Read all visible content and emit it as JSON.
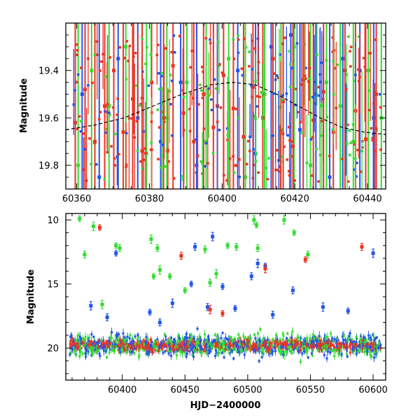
{
  "chart_data": [
    {
      "type": "scatter",
      "title": "",
      "xlabel": "",
      "ylabel": "Magnitude",
      "xlim": [
        60357,
        60445
      ],
      "ylim": [
        19.9,
        19.2
      ],
      "y_inverted": true,
      "xticks": [
        60360,
        60380,
        60400,
        60420,
        60440
      ],
      "yticks": [
        19.4,
        19.6,
        19.8
      ],
      "grid": false,
      "legend": "none",
      "series": [
        {
          "color": "#2255ee",
          "error_bars": true,
          "x": [
            60361.5,
            60366.2,
            60371.4,
            60376.8,
            60383.1,
            60388.6,
            60393.0,
            60398.7,
            60404.3,
            60409.2,
            60413.5,
            60418.9,
            60421.4,
            60425.8,
            60429.6,
            60433.2,
            60437.9,
            60441.7
          ],
          "y": [
            19.5,
            19.85,
            19.35,
            19.6,
            19.7,
            19.45,
            19.8,
            19.55,
            19.4,
            19.75,
            19.3,
            19.25,
            19.65,
            19.5,
            19.85,
            19.35,
            19.4,
            19.6
          ]
        },
        {
          "color": "#33dd33",
          "error_bars": true,
          "x": [
            60360.4,
            60364.1,
            60368.9,
            60373.5,
            60379.2,
            60384.8,
            60390.3,
            60395.6,
            60401.8,
            60406.4,
            60411.7,
            60416.2,
            60419.8,
            60424.3,
            60428.7,
            60432.5,
            60436.1,
            60440.2,
            60443.8
          ],
          "y": [
            19.8,
            19.4,
            19.55,
            19.3,
            19.75,
            19.6,
            19.45,
            19.7,
            19.35,
            19.85,
            19.5,
            19.65,
            19.3,
            19.8,
            19.45,
            19.55,
            19.7,
            19.4,
            19.6
          ]
        },
        {
          "color": "#ee3322",
          "error_bars": true,
          "x": [
            60359.6,
            60362.3,
            60365.0,
            60367.7,
            60370.2,
            60372.8,
            60375.4,
            60378.0,
            60380.6,
            60383.9,
            60386.5,
            60389.4,
            60392.2,
            60394.9,
            60397.6,
            60400.4,
            60403.1,
            60405.9,
            60408.5,
            60411.2,
            60414.0,
            60416.8,
            60419.5,
            60422.3,
            60425.1,
            60427.9,
            60430.6,
            60433.8,
            60436.7,
            60439.5,
            60442.4
          ],
          "y": [
            19.62,
            19.48,
            19.7,
            19.55,
            19.4,
            19.66,
            19.52,
            19.74,
            19.45,
            19.6,
            19.38,
            19.58,
            19.7,
            19.5,
            19.64,
            19.42,
            19.56,
            19.68,
            19.47,
            19.6,
            19.35,
            19.53,
            19.72,
            19.44,
            19.61,
            19.49,
            19.66,
            19.4,
            19.57,
            19.69,
            19.5
          ]
        }
      ],
      "model_curve": {
        "color": "#000000",
        "style": "dashed",
        "x": [
          60357,
          60365,
          60373,
          60381,
          60389,
          60397,
          60403,
          60409,
          60415,
          60421,
          60427,
          60433,
          60439,
          60445
        ],
        "y": [
          19.65,
          19.63,
          19.6,
          19.55,
          19.5,
          19.46,
          19.45,
          19.46,
          19.5,
          19.55,
          19.6,
          19.64,
          19.66,
          19.67
        ]
      }
    },
    {
      "type": "scatter",
      "title": "",
      "xlabel": "HJD−2400000",
      "ylabel": "Magnitude",
      "xlim": [
        60355,
        60610
      ],
      "ylim": [
        22.5,
        9.5
      ],
      "y_inverted": true,
      "xticks": [
        60400,
        60450,
        60500,
        60550,
        60600
      ],
      "yticks": [
        10,
        15,
        20
      ],
      "grid": false,
      "legend": "none",
      "series": [
        {
          "color": "#2255ee",
          "error_bars": true,
          "x": [
            60395,
            60458,
            60472,
            60480,
            60503,
            60508,
            60514,
            60536,
            60600,
            60455,
            60468,
            60440,
            60422,
            60388,
            60375,
            60490,
            60520,
            60560,
            60580,
            60430
          ],
          "y": [
            12.6,
            12.1,
            11.3,
            15.2,
            14.4,
            13.4,
            13.6,
            15.5,
            12.6,
            15.0,
            16.8,
            16.5,
            17.2,
            17.6,
            16.7,
            16.9,
            17.4,
            16.8,
            17.1,
            18.0
          ]
        },
        {
          "color": "#33dd33",
          "error_bars": true,
          "x": [
            60366,
            60370,
            60377,
            60395,
            60398,
            60423,
            60425,
            60428,
            60430,
            60438,
            60466,
            60475,
            60484,
            60491,
            60505,
            60507,
            60508,
            60529,
            60537,
            60548,
            60384,
            60450,
            60470
          ],
          "y": [
            9.9,
            12.7,
            10.5,
            12.0,
            12.2,
            11.5,
            14.4,
            12.2,
            13.9,
            14.4,
            12.3,
            14.2,
            12.0,
            12.1,
            10.0,
            10.4,
            12.2,
            10.0,
            11.0,
            12.7,
            16.6,
            15.5,
            14.9
          ]
        },
        {
          "color": "#ee3322",
          "error_bars": true,
          "x": [
            60382,
            60447,
            60514,
            60546,
            60591,
            60470,
            60480
          ],
          "y": [
            10.6,
            12.8,
            13.8,
            13.1,
            12.1,
            17.0,
            17.3
          ]
        }
      ],
      "dense_band": {
        "x_range": [
          60358,
          60606
        ],
        "y_center": 19.8,
        "y_spread": 1.1
      }
    }
  ]
}
